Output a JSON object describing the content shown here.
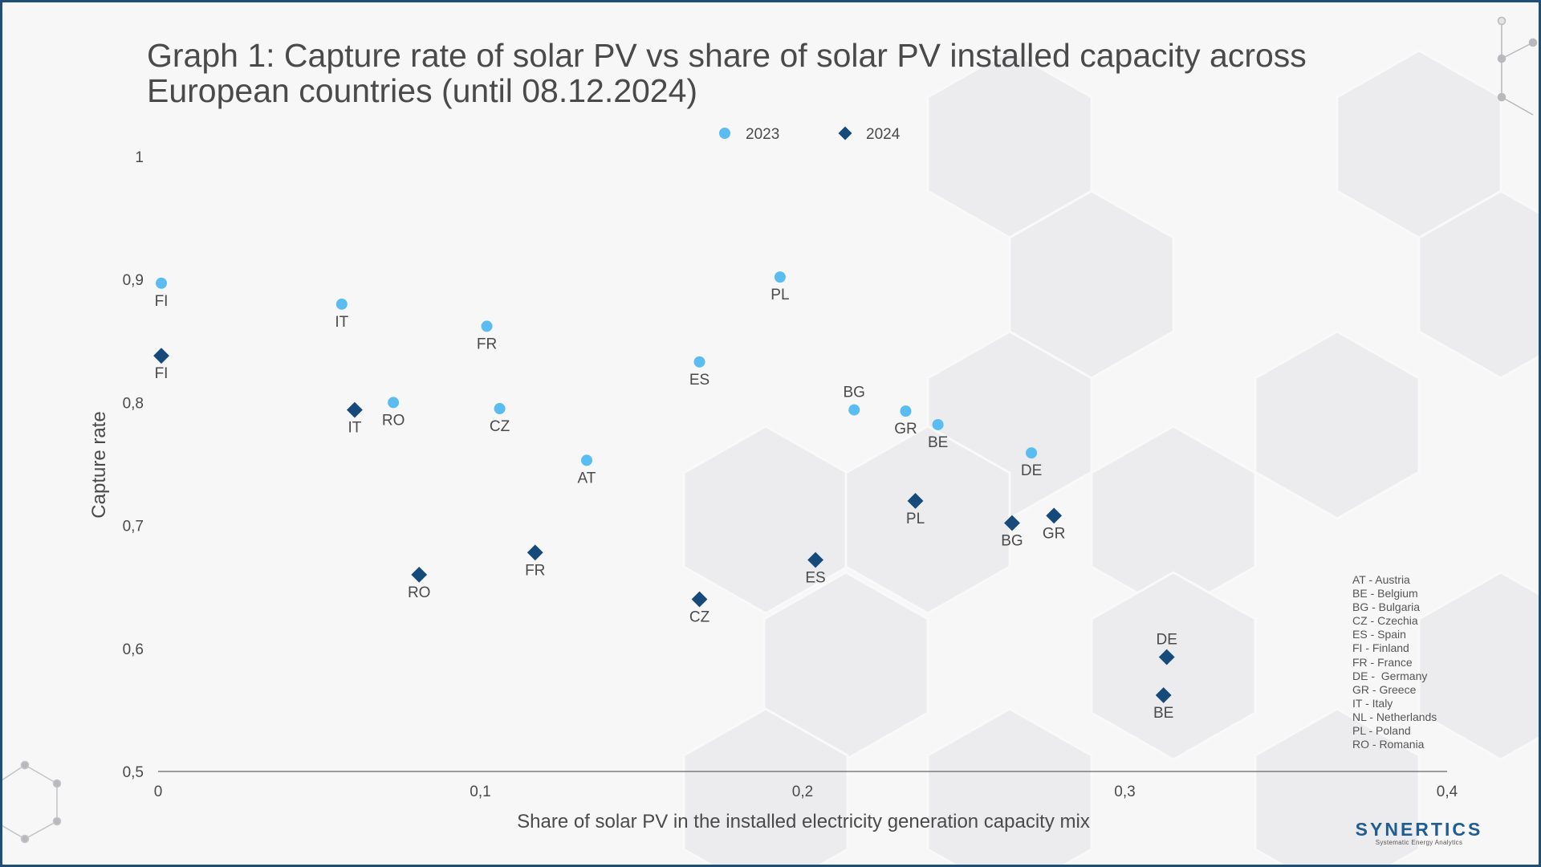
{
  "title": "Graph 1: Capture rate of solar PV vs share of solar PV installed capacity across European countries (until 08.12.2024)",
  "colors": {
    "s2023": "#5bbcf2",
    "s2024": "#154a7a",
    "axis": "#666666",
    "text": "#4a4a4a",
    "frame": "#1f4e79",
    "brand": "#1f5d94"
  },
  "chart_data": {
    "type": "scatter",
    "title": "Graph 1: Capture rate of solar PV vs share of solar PV installed capacity across European countries (until 08.12.2024)",
    "xlabel": "Share of solar PV in the installed electricity generation capacity mix",
    "ylabel": "Capture rate",
    "xlim": [
      0,
      0.4
    ],
    "ylim": [
      0.5,
      1
    ],
    "x_ticks": [
      0,
      0.1,
      0.2,
      0.3,
      0.4
    ],
    "x_tick_labels": [
      "0",
      "0,1",
      "0,2",
      "0,3",
      "0,4"
    ],
    "y_ticks": [
      0.5,
      0.6,
      0.7,
      0.8,
      0.9,
      1
    ],
    "y_tick_labels": [
      "0,5",
      "0,6",
      "0,7",
      "0,8",
      "0,9",
      "1"
    ],
    "grid": false,
    "legend_position": "top-center",
    "series": [
      {
        "name": "2023",
        "marker": "circle",
        "color": "#5bbcf2",
        "points": [
          {
            "label": "FI",
            "x": 0.001,
            "y": 0.897,
            "label_pos": "below"
          },
          {
            "label": "IT",
            "x": 0.057,
            "y": 0.88,
            "label_pos": "below"
          },
          {
            "label": "FR",
            "x": 0.102,
            "y": 0.862,
            "label_pos": "below"
          },
          {
            "label": "RO",
            "x": 0.073,
            "y": 0.8,
            "label_pos": "below"
          },
          {
            "label": "CZ",
            "x": 0.106,
            "y": 0.795,
            "label_pos": "below"
          },
          {
            "label": "AT",
            "x": 0.133,
            "y": 0.753,
            "label_pos": "below"
          },
          {
            "label": "ES",
            "x": 0.168,
            "y": 0.833,
            "label_pos": "below"
          },
          {
            "label": "PL",
            "x": 0.193,
            "y": 0.902,
            "label_pos": "below"
          },
          {
            "label": "BG",
            "x": 0.216,
            "y": 0.794,
            "label_pos": "above"
          },
          {
            "label": "GR",
            "x": 0.232,
            "y": 0.793,
            "label_pos": "below"
          },
          {
            "label": "BE",
            "x": 0.242,
            "y": 0.782,
            "label_pos": "below"
          },
          {
            "label": "DE",
            "x": 0.271,
            "y": 0.759,
            "label_pos": "below"
          }
        ]
      },
      {
        "name": "2024",
        "marker": "diamond",
        "color": "#154a7a",
        "points": [
          {
            "label": "FI",
            "x": 0.001,
            "y": 0.838,
            "label_pos": "below"
          },
          {
            "label": "IT",
            "x": 0.061,
            "y": 0.794,
            "label_pos": "below"
          },
          {
            "label": "RO",
            "x": 0.081,
            "y": 0.66,
            "label_pos": "below"
          },
          {
            "label": "FR",
            "x": 0.117,
            "y": 0.678,
            "label_pos": "below"
          },
          {
            "label": "CZ",
            "x": 0.168,
            "y": 0.64,
            "label_pos": "below"
          },
          {
            "label": "ES",
            "x": 0.204,
            "y": 0.672,
            "label_pos": "below"
          },
          {
            "label": "PL",
            "x": 0.235,
            "y": 0.72,
            "label_pos": "below"
          },
          {
            "label": "BG",
            "x": 0.265,
            "y": 0.702,
            "label_pos": "below"
          },
          {
            "label": "GR",
            "x": 0.278,
            "y": 0.708,
            "label_pos": "below"
          },
          {
            "label": "DE",
            "x": 0.313,
            "y": 0.593,
            "label_pos": "above"
          },
          {
            "label": "BE",
            "x": 0.312,
            "y": 0.562,
            "label_pos": "below"
          }
        ]
      }
    ]
  },
  "abbreviations": [
    "AT - Austria",
    "BE - Belgium",
    "BG - Bulgaria",
    "CZ - Czechia",
    "ES - Spain",
    "FI - Finland",
    "FR - France",
    "DE -  Germany",
    "GR - Greece",
    "IT - Italy",
    "NL - Netherlands",
    "PL - Poland",
    "RO - Romania"
  ],
  "brand": {
    "name": "SYNERTICS",
    "tagline": "Systematic Energy Analytics"
  }
}
